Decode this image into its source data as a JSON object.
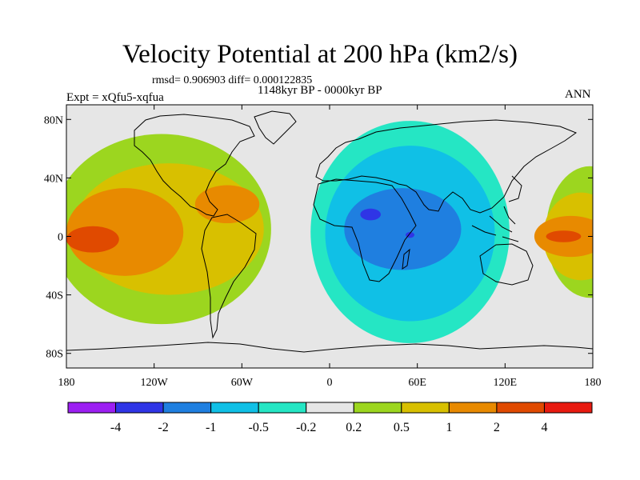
{
  "title": "Velocity Potential at 200 hPa (km2/s)",
  "stats": "rmsd= 0.906903 diff= 0.000122835",
  "period": "1148kyr BP - 0000kyr BP",
  "experiment": "Expt = xQfu5-xqfua",
  "season": "ANN",
  "lat_ticks": [
    {
      "label": "80N",
      "lat": 80
    },
    {
      "label": "40N",
      "lat": 40
    },
    {
      "label": "0",
      "lat": 0
    },
    {
      "label": "40S",
      "lat": -40
    },
    {
      "label": "80S",
      "lat": -80
    }
  ],
  "lon_ticks": [
    {
      "label": "180",
      "lon": -180
    },
    {
      "label": "120W",
      "lon": -120
    },
    {
      "label": "60W",
      "lon": -60
    },
    {
      "label": "0",
      "lon": 0
    },
    {
      "label": "60E",
      "lon": 60
    },
    {
      "label": "120E",
      "lon": 120
    },
    {
      "label": "180",
      "lon": 180
    }
  ],
  "colorbar": {
    "colors": [
      "#9c1ff2",
      "#2f35e6",
      "#1f7fe0",
      "#10c0e6",
      "#25e6c4",
      "#e6e6e6",
      "#9cd61f",
      "#d8c000",
      "#e88a00",
      "#e04a00",
      "#e81a10"
    ],
    "labels": [
      "-4",
      "-2",
      "-1",
      "-0.5",
      "-0.2",
      "0.2",
      "0.5",
      "1",
      "2",
      "4"
    ]
  },
  "regions": [
    {
      "level": 0.2,
      "color": "#9cd61f",
      "center_lon": -115,
      "center_lat": 5,
      "lon_radius": 75,
      "lat_radius": 65
    },
    {
      "level": 0.5,
      "color": "#d8c000",
      "center_lon": -110,
      "center_lat": 5,
      "lon_radius": 65,
      "lat_radius": 45
    },
    {
      "level": 1,
      "color": "#e88a00",
      "center_lon": -140,
      "center_lat": 3,
      "lon_radius": 40,
      "lat_radius": 30
    },
    {
      "level": 1,
      "color": "#e88a00",
      "center_lon": -70,
      "center_lat": 22,
      "lon_radius": 22,
      "lat_radius": 13
    },
    {
      "level": 2,
      "color": "#e04a00",
      "center_lon": -162,
      "center_lat": -2,
      "lon_radius": 18,
      "lat_radius": 9
    },
    {
      "level": -0.2,
      "color": "#25e6c4",
      "center_lon": 55,
      "center_lat": 3,
      "lon_radius": 68,
      "lat_radius": 76
    },
    {
      "level": -0.5,
      "color": "#10c0e6",
      "center_lon": 55,
      "center_lat": 2,
      "lon_radius": 58,
      "lat_radius": 60
    },
    {
      "level": -1,
      "color": "#1f7fe0",
      "center_lon": 50,
      "center_lat": 5,
      "lon_radius": 40,
      "lat_radius": 28
    },
    {
      "level": -2,
      "color": "#2f35e6",
      "center_lon": 28,
      "center_lat": 15,
      "lon_radius": 7,
      "lat_radius": 4
    },
    {
      "level": -2,
      "color": "#2f35e6",
      "center_lon": 55,
      "center_lat": 1,
      "lon_radius": 3,
      "lat_radius": 2
    },
    {
      "level": 0.2,
      "color": "#9cd61f",
      "center_lon": 178,
      "center_lat": 3,
      "lon_radius": 30,
      "lat_radius": 45
    },
    {
      "level": 0.5,
      "color": "#d8c000",
      "center_lon": 172,
      "center_lat": 0,
      "lon_radius": 26,
      "lat_radius": 30
    },
    {
      "level": 1,
      "color": "#e88a00",
      "center_lon": 165,
      "center_lat": 0,
      "lon_radius": 25,
      "lat_radius": 14
    },
    {
      "level": 2,
      "color": "#e04a00",
      "center_lon": 160,
      "center_lat": 0,
      "lon_radius": 12,
      "lat_radius": 4
    }
  ]
}
